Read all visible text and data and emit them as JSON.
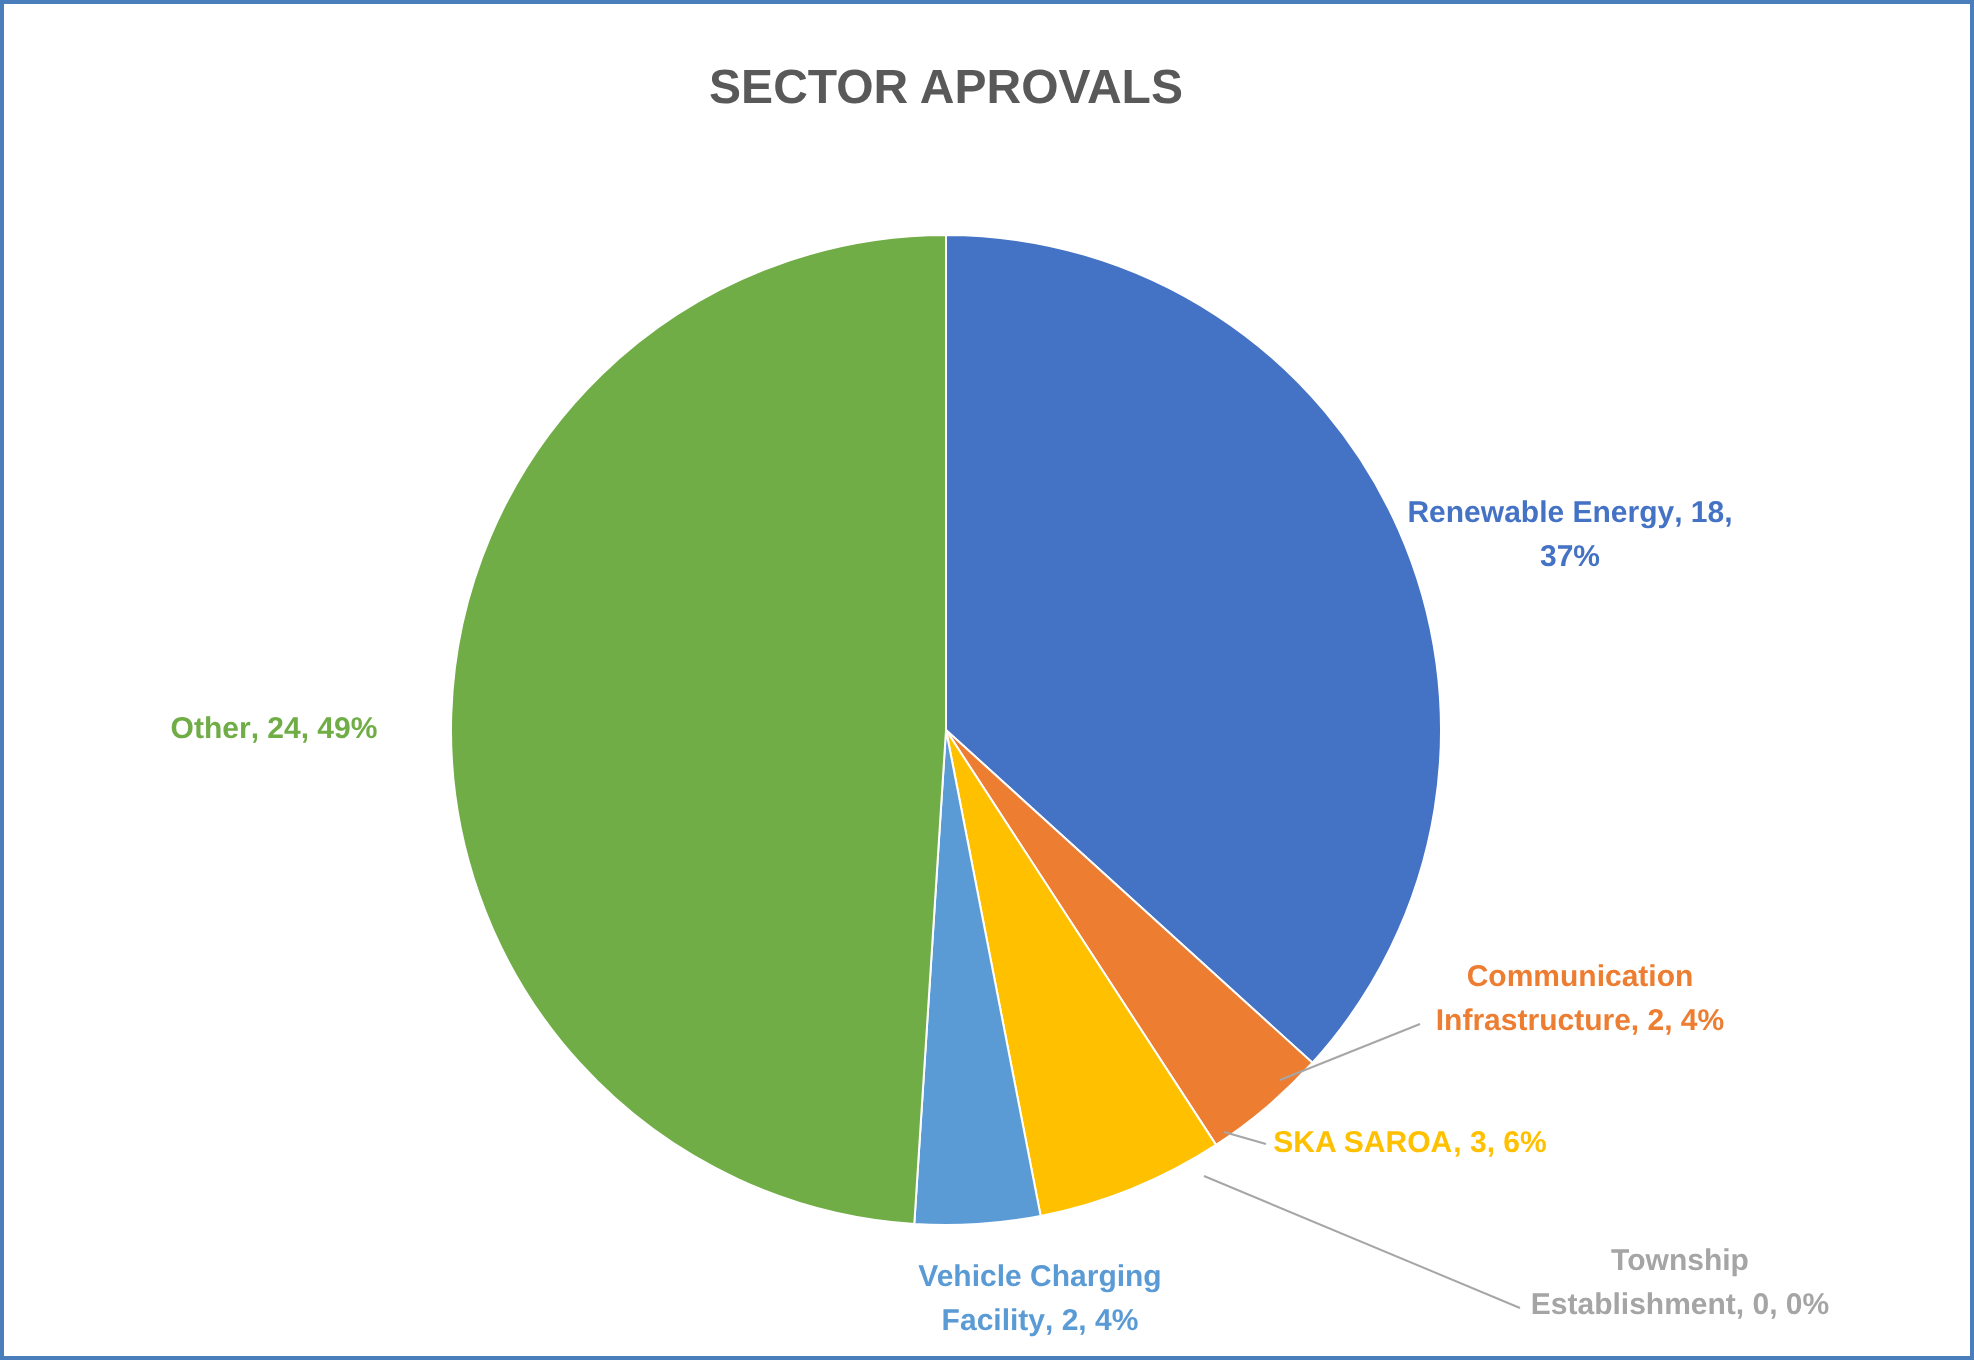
{
  "chart_data": {
    "type": "pie",
    "title": "SECTOR APROVALS",
    "categories": [
      "Renewable Energy",
      "Communication Infrastructure",
      "SKA SAROA",
      "Township Establishment",
      "Vehicle Charging Facility",
      "Other"
    ],
    "values": [
      18,
      2,
      3,
      0,
      2,
      24
    ],
    "value_labels": [
      ", 18, 37%",
      ", 2, 4%",
      ", 3, 6%",
      ", 0, 0%",
      ", 2, 4%",
      ", 24, 49%"
    ],
    "colors": [
      "#4472c4",
      "#ed7d31",
      "#ffc000",
      "#a5a5a5",
      "#5b9bd5",
      "#70ad47"
    ],
    "legend": false
  }
}
